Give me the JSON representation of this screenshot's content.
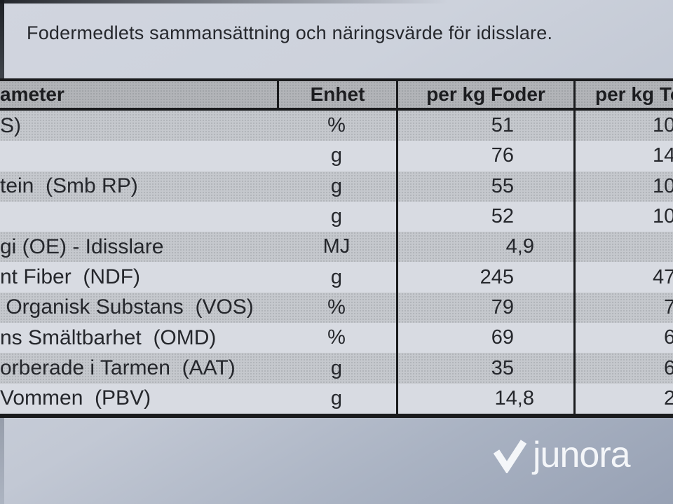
{
  "title": "Fodermedlets sammansättning och näringsvärde för idisslare.",
  "table": {
    "headers": [
      {
        "label": "ameter"
      },
      {
        "label": "Enhet"
      },
      {
        "label": "per kg Foder"
      },
      {
        "label": "per kg To"
      }
    ],
    "rows": [
      {
        "parameter": "S)",
        "unit": "%",
        "per_kg_foder": "51",
        "per_kg_ts_visible": "10",
        "decimal": false
      },
      {
        "parameter": "",
        "unit": "g",
        "per_kg_foder": "76",
        "per_kg_ts_visible": "14",
        "decimal": false
      },
      {
        "parameter": "tein  (Smb RP)",
        "unit": "g",
        "per_kg_foder": "55",
        "per_kg_ts_visible": "10",
        "decimal": false
      },
      {
        "parameter": "",
        "unit": "g",
        "per_kg_foder": "52",
        "per_kg_ts_visible": "10",
        "decimal": false
      },
      {
        "parameter": "gi (OE) - Idisslare",
        "unit": "MJ",
        "per_kg_foder": "4,9",
        "per_kg_ts_visible": "",
        "decimal": true
      },
      {
        "parameter": "nt Fiber  (NDF)",
        "unit": "g",
        "per_kg_foder": "245",
        "per_kg_ts_visible": "47",
        "decimal": false
      },
      {
        "parameter": " Organisk Substans  (VOS)",
        "unit": "%",
        "per_kg_foder": "79",
        "per_kg_ts_visible": "7",
        "decimal": false
      },
      {
        "parameter": "ns Smältbarhet  (OMD)",
        "unit": "%",
        "per_kg_foder": "69",
        "per_kg_ts_visible": "6",
        "decimal": false
      },
      {
        "parameter": "orberade i Tarmen  (AAT)",
        "unit": "g",
        "per_kg_foder": "35",
        "per_kg_ts_visible": "6",
        "decimal": false
      },
      {
        "parameter": "Vommen  (PBV)",
        "unit": "g",
        "per_kg_foder": "14,8",
        "per_kg_ts_visible": "2",
        "decimal": true
      }
    ]
  },
  "watermark": {
    "brand": "junora",
    "icon": "checkmark-icon"
  },
  "colors": {
    "paper_top": "#cdd2dc",
    "paper_bottom_right": "#97a1b4",
    "row_dark": "#c5c8cd",
    "row_light": "#d8dbe2",
    "header_fill": "#b2b4b8",
    "table_border": "#1a1b1d",
    "text": "#26282d",
    "watermark_white": "#f4f6f9"
  }
}
